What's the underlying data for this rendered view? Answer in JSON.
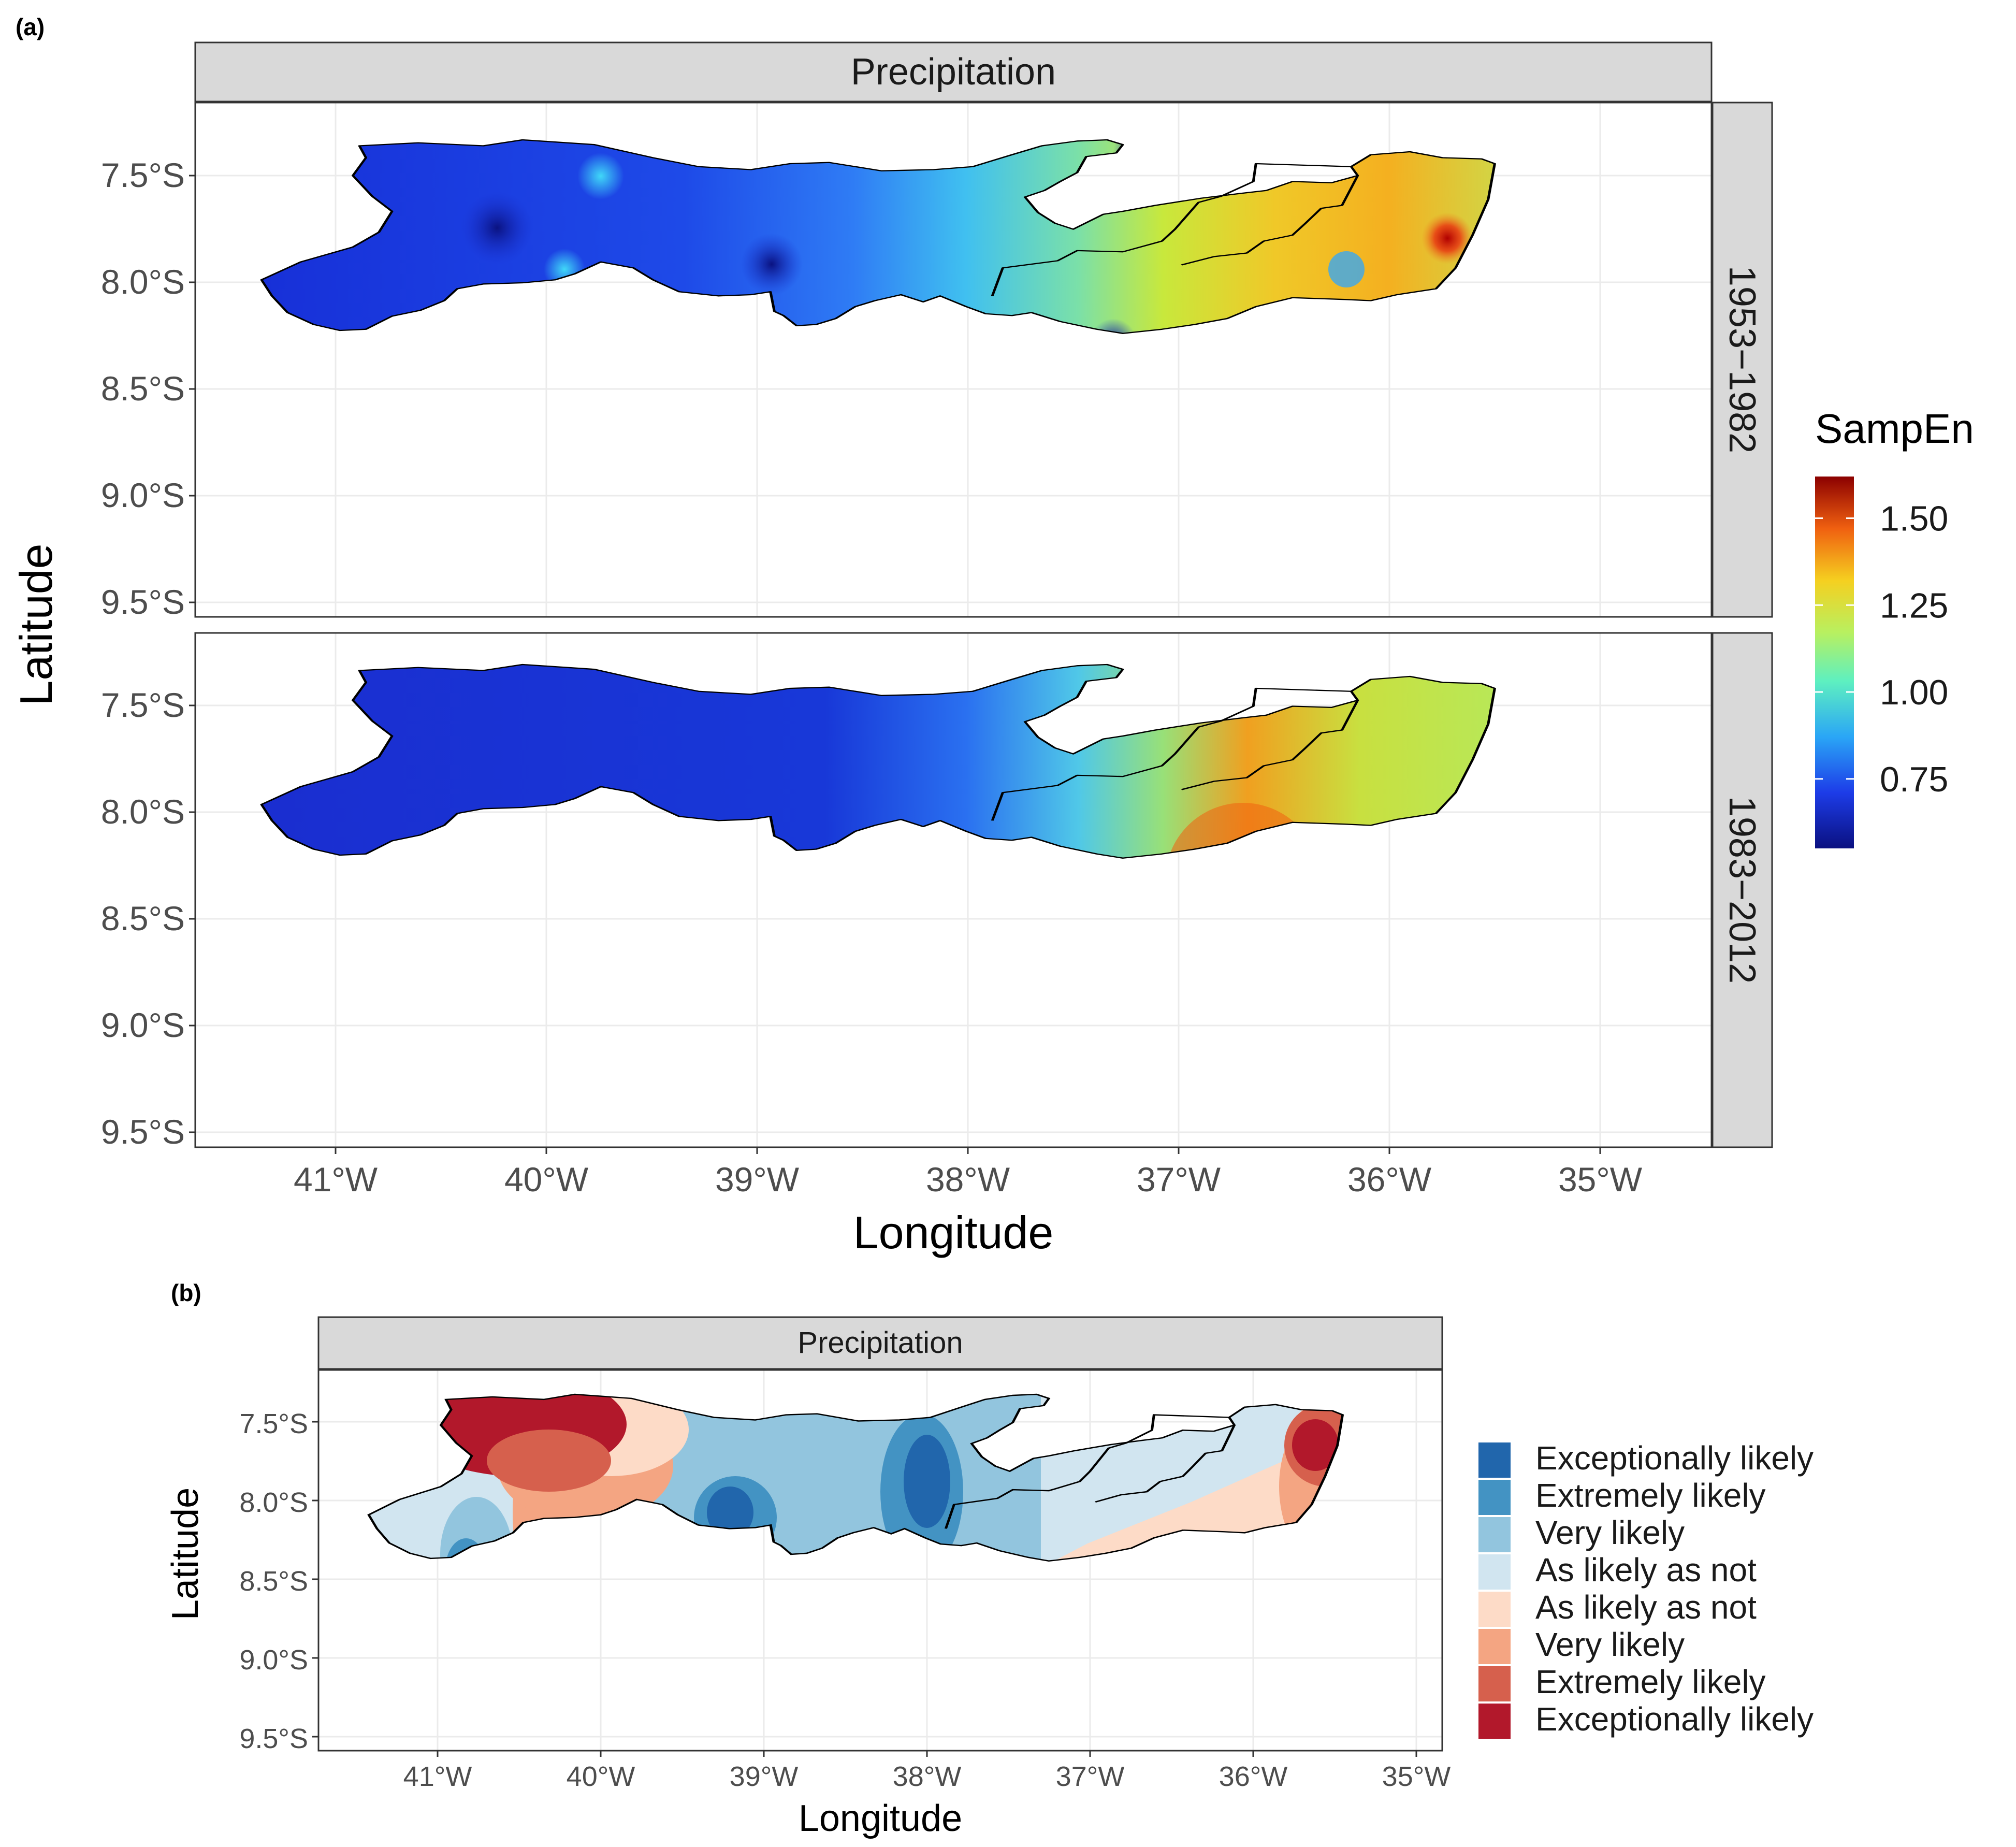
{
  "panel_a": {
    "label": "(a)",
    "title": "Precipitation",
    "facets": [
      "1953−1982",
      "1983−2012"
    ],
    "xlabel": "Longitude",
    "ylabel": "Latitude",
    "x_ticks": [
      "41°W",
      "40°W",
      "39°W",
      "38°W",
      "37°W",
      "36°W",
      "35°W"
    ],
    "y_ticks": [
      "7.5°S",
      "8.0°S",
      "8.5°S",
      "9.0°S",
      "9.5°S"
    ],
    "legend_title": "SampEn",
    "legend_ticks": [
      "1.50",
      "1.25",
      "1.00",
      "0.75"
    ],
    "colors": {
      "low": "#0a1080",
      "mid": "#b8f060",
      "high": "#8b0000"
    }
  },
  "panel_b": {
    "label": "(b)",
    "title": "Precipitation",
    "xlabel": "Longitude",
    "ylabel": "Latitude",
    "x_ticks": [
      "41°W",
      "40°W",
      "39°W",
      "38°W",
      "37°W",
      "36°W",
      "35°W"
    ],
    "y_ticks": [
      "7.5°S",
      "8.0°S",
      "8.5°S",
      "9.0°S",
      "9.5°S"
    ],
    "legend": [
      {
        "label": "Exceptionally likely",
        "color": "#2166ac"
      },
      {
        "label": "Extremely likely",
        "color": "#4393c3"
      },
      {
        "label": "Very likely",
        "color": "#92c5de"
      },
      {
        "label": "As likely as not",
        "color": "#d1e5f0"
      },
      {
        "label": "As likely as not",
        "color": "#fddbc7"
      },
      {
        "label": "Very likely",
        "color": "#f4a582"
      },
      {
        "label": "Extremely likely",
        "color": "#d6604d"
      },
      {
        "label": "Exceptionally likely",
        "color": "#b2182b"
      }
    ]
  },
  "chart_data": {
    "type": "heatmap",
    "title": "Precipitation",
    "xlabel": "Longitude",
    "ylabel": "Latitude",
    "xlim": [
      -41.7,
      -34.5
    ],
    "ylim": [
      -9.6,
      -7.2
    ],
    "colorbar": {
      "title": "SampEn",
      "ticks": [
        0.75,
        1.0,
        1.25,
        1.5
      ],
      "range": [
        0.55,
        1.62
      ]
    },
    "periods": [
      {
        "name": "1953−1982",
        "west_region": 0.7,
        "central_region": 1.0,
        "east_region": 1.25
      },
      {
        "name": "1983−2012",
        "west_region": 0.65,
        "central_region": 0.9,
        "east_region": 1.15
      }
    ]
  }
}
